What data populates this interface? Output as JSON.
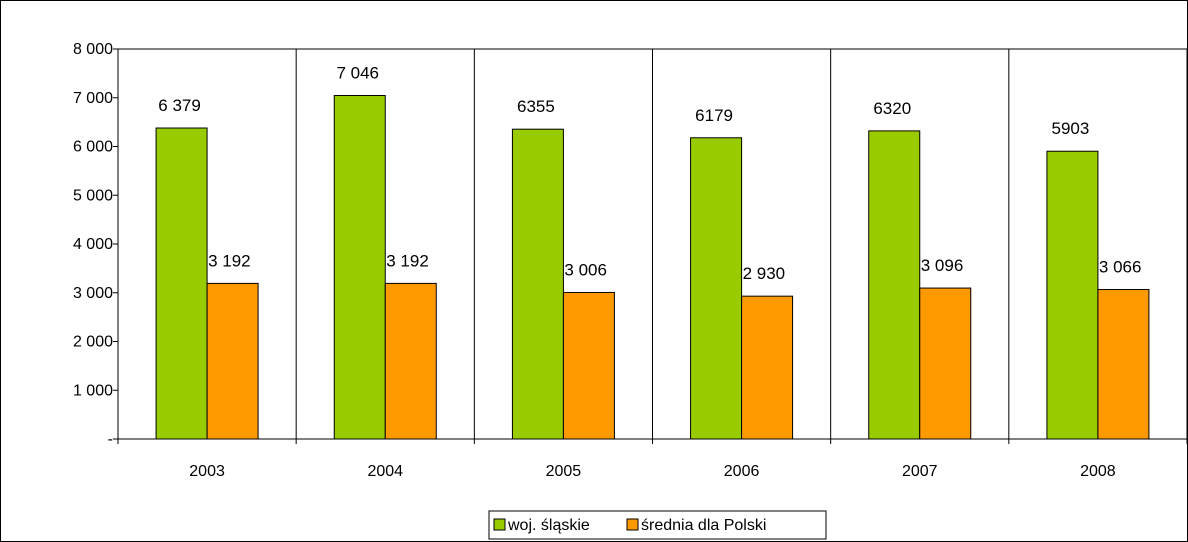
{
  "chart_data": {
    "type": "bar",
    "categories": [
      "2003",
      "2004",
      "2005",
      "2006",
      "2007",
      "2008"
    ],
    "series": [
      {
        "name": "woj. śląskie",
        "color": "#99cc00",
        "values": [
          6379,
          7046,
          6355,
          6179,
          6320,
          5903
        ],
        "labels": [
          "6 379",
          "7 046",
          "6355",
          "6179",
          "6320",
          "5903"
        ]
      },
      {
        "name": "średnia dla Polski",
        "color": "#ff9900",
        "values": [
          3192,
          3192,
          3006,
          2930,
          3096,
          3066
        ],
        "labels": [
          "3 192",
          "3 192",
          "3 006",
          "2 930",
          "3 096",
          "3 066"
        ]
      }
    ],
    "ylim": [
      0,
      8000
    ],
    "yticks": [
      0,
      1000,
      2000,
      3000,
      4000,
      5000,
      6000,
      7000,
      8000
    ],
    "ytick_labels": [
      "-",
      "1 000",
      "2 000",
      "3 000",
      "4 000",
      "5 000",
      "6 000",
      "7 000",
      "8 000"
    ],
    "grid": "vertical category separators",
    "legend_position": "bottom"
  }
}
